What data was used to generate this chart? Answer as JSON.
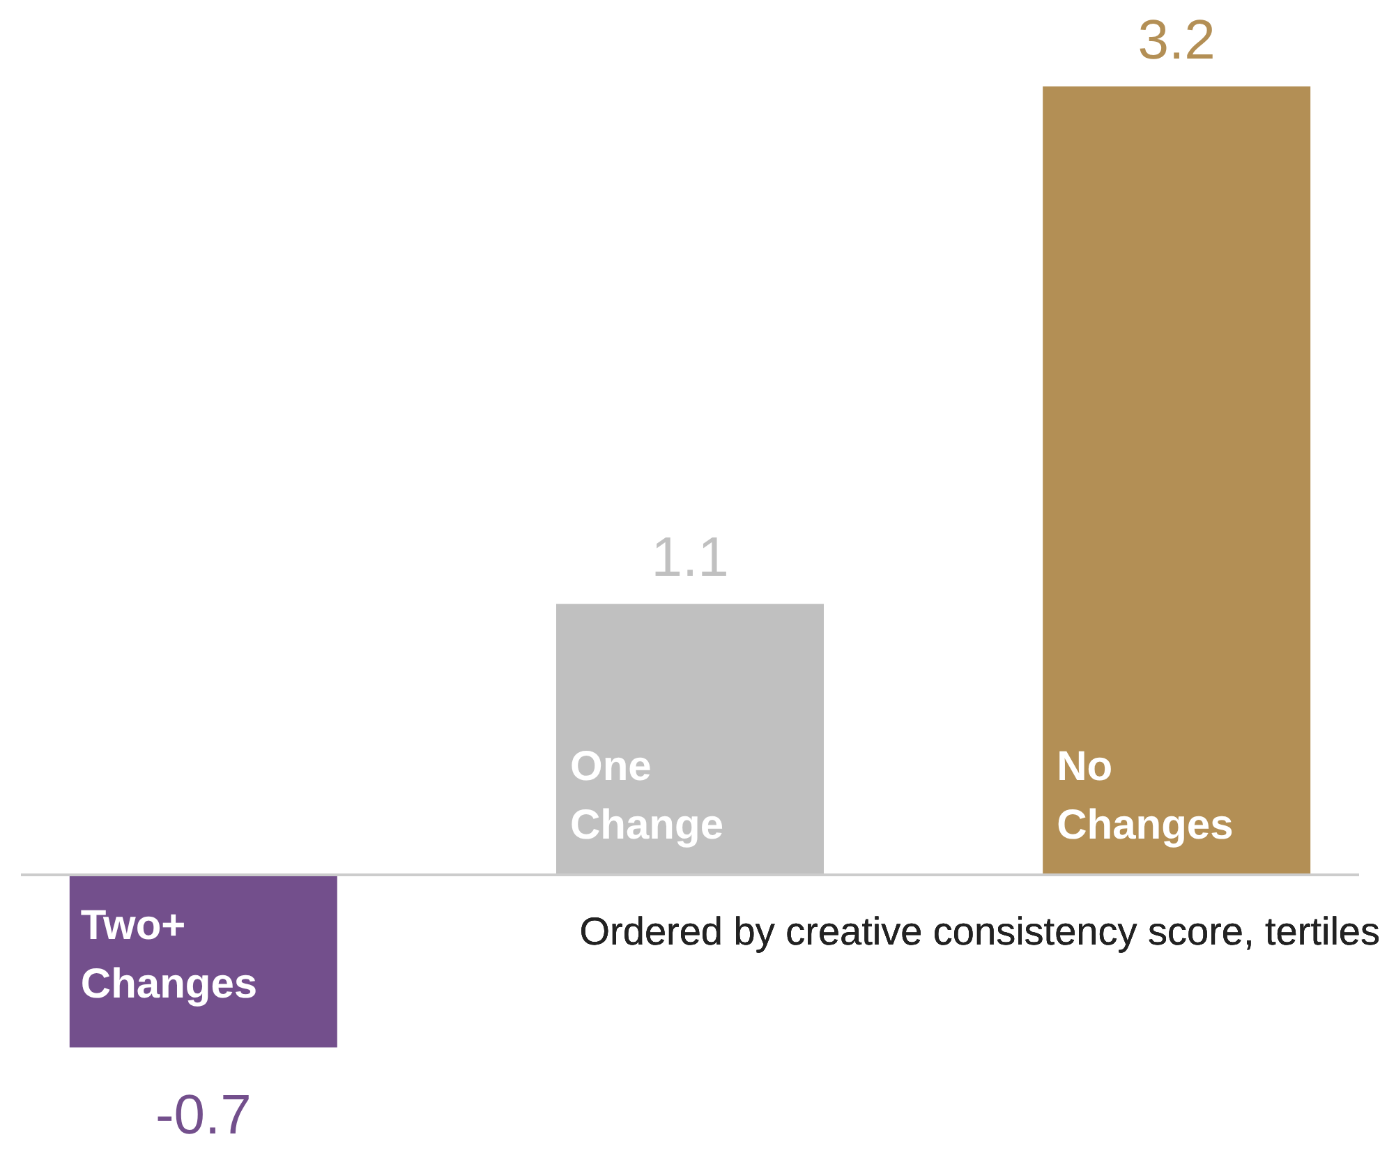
{
  "chart_data": {
    "type": "bar",
    "categories": [
      "Two+ Changes",
      "One Change",
      "No Changes"
    ],
    "values": [
      -0.7,
      1.1,
      3.2
    ],
    "colors": [
      "#734f8c",
      "#c0c0c0",
      "#b38f55"
    ],
    "data_labels": true,
    "annotations": [
      "Ordered by creative consistency score, tertiles"
    ]
  }
}
